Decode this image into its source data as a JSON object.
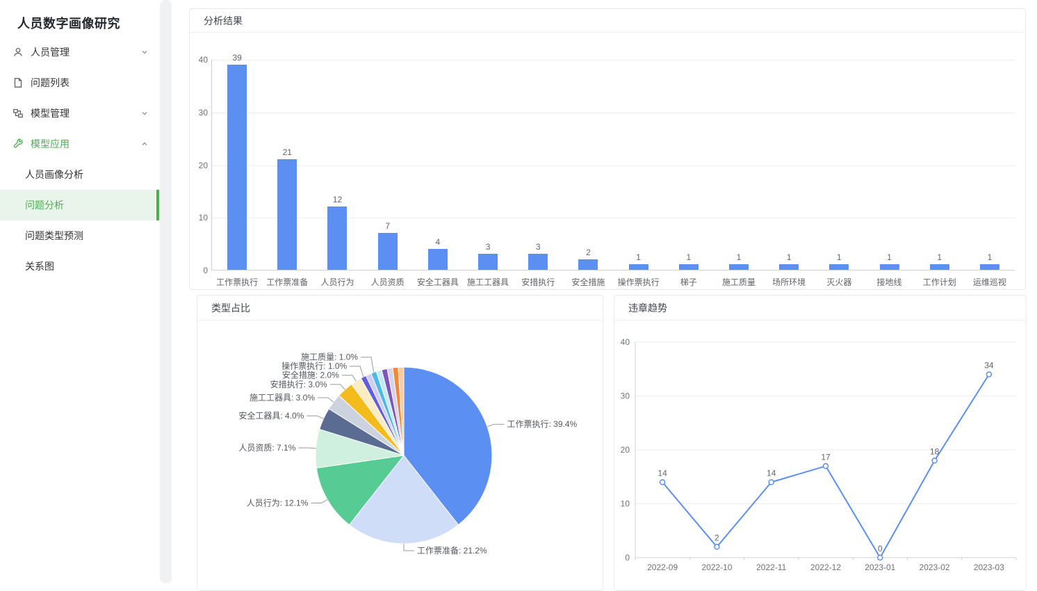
{
  "sidebar": {
    "title": "人员数字画像研究",
    "menu": [
      {
        "label": "人员管理",
        "icon": "user-icon",
        "chevron": "down"
      },
      {
        "label": "问题列表",
        "icon": "document-icon",
        "chevron": "none"
      },
      {
        "label": "模型管理",
        "icon": "model-icon",
        "chevron": "down"
      },
      {
        "label": "模型应用",
        "icon": "wrench-icon",
        "chevron": "up",
        "highlighted": true
      }
    ],
    "submenu": [
      {
        "label": "人员画像分析",
        "selected": false
      },
      {
        "label": "问题分析",
        "selected": true
      },
      {
        "label": "问题类型预测",
        "selected": false
      },
      {
        "label": "关系图",
        "selected": false
      }
    ]
  },
  "panels": {
    "analysis": {
      "title": "分析结果"
    },
    "pie": {
      "title": "类型占比"
    },
    "trend": {
      "title": "违章趋势"
    }
  },
  "colors": {
    "accent_green": "#4CAF50",
    "active_item_bg": "#E9F5EA",
    "bar_blue": "#5B8FF2",
    "line_blue": "#5B8FF2",
    "grid_line": "#ebedf0",
    "axis_line": "#ccd0d6",
    "axis_text": "#6e7079",
    "value_text": "#5e646b",
    "pie_label_text": "#53575e",
    "pie_leader_line": "#999999"
  },
  "chart_data": [
    {
      "type": "bar",
      "title": "分析结果",
      "categories": [
        "工作票执行",
        "工作票准备",
        "人员行为",
        "人员资质",
        "安全工器具",
        "施工工器具",
        "安措执行",
        "安全措施",
        "操作票执行",
        "梯子",
        "施工质量",
        "场所环境",
        "灭火器",
        "接地线",
        "工作计划",
        "运维巡视"
      ],
      "values": [
        39,
        21,
        12,
        7,
        4,
        3,
        3,
        2,
        1,
        1,
        1,
        1,
        1,
        1,
        1,
        1
      ],
      "xlabel": "",
      "ylabel": "",
      "ylim": [
        0,
        40
      ],
      "yticks": [
        0,
        10,
        20,
        30,
        40
      ],
      "grid": true,
      "bar_color": "#5B8FF2"
    },
    {
      "type": "pie",
      "title": "类型占比",
      "slices": [
        {
          "label": "工作票执行",
          "value": 39,
          "pct": "39.4%",
          "color": "#5B8FF2",
          "labeled": true
        },
        {
          "label": "工作票准备",
          "value": 21,
          "pct": "21.2%",
          "color": "#D0DDF8",
          "labeled": true
        },
        {
          "label": "人员行为",
          "value": 12,
          "pct": "12.1%",
          "color": "#57CB94",
          "labeled": true
        },
        {
          "label": "人员资质",
          "value": 7,
          "pct": "7.1%",
          "color": "#CFF0DF",
          "labeled": true
        },
        {
          "label": "安全工器具",
          "value": 4,
          "pct": "4.0%",
          "color": "#5A6C92",
          "labeled": true
        },
        {
          "label": "施工工器具",
          "value": 3,
          "pct": "3.0%",
          "color": "#CCD3DE",
          "labeled": true
        },
        {
          "label": "安措执行",
          "value": 3,
          "pct": "3.0%",
          "color": "#F4BB1C",
          "labeled": true
        },
        {
          "label": "安全措施",
          "value": 2,
          "pct": "2.0%",
          "color": "#FAEDC3",
          "labeled": true
        },
        {
          "label": "操作票执行",
          "value": 1,
          "pct": "1.0%",
          "color": "#615EDC",
          "labeled": true
        },
        {
          "label": "梯子",
          "value": 1,
          "pct": "1.0%",
          "color": "#CFCDF5",
          "labeled": false
        },
        {
          "label": "施工质量",
          "value": 1,
          "pct": "1.0%",
          "color": "#4FB9E2",
          "labeled": true
        },
        {
          "label": "场所环境",
          "value": 1,
          "pct": "1.0%",
          "color": "#C4EAF6",
          "labeled": false
        },
        {
          "label": "灭火器",
          "value": 1,
          "pct": "1.0%",
          "color": "#7D55BB",
          "labeled": false
        },
        {
          "label": "接地线",
          "value": 1,
          "pct": "1.0%",
          "color": "#D4D3EA",
          "labeled": false
        },
        {
          "label": "工作计划",
          "value": 1,
          "pct": "1.0%",
          "color": "#F0883B",
          "labeled": false
        },
        {
          "label": "运维巡视",
          "value": 1,
          "pct": "1.0%",
          "color": "#F8CBA0",
          "labeled": false
        }
      ],
      "legend_position": "none",
      "start_angle": "top",
      "direction": "clockwise"
    },
    {
      "type": "line",
      "title": "违章趋势",
      "x": [
        "2022-09",
        "2022-10",
        "2022-11",
        "2022-12",
        "2023-01",
        "2023-02",
        "2023-03"
      ],
      "values": [
        14,
        2,
        14,
        17,
        0,
        18,
        34
      ],
      "xlabel": "",
      "ylabel": "",
      "ylim": [
        0,
        40
      ],
      "yticks": [
        0,
        10,
        20,
        30,
        40
      ],
      "grid": true,
      "line_color": "#5B8FF2",
      "marker": "hollow-circle"
    }
  ]
}
